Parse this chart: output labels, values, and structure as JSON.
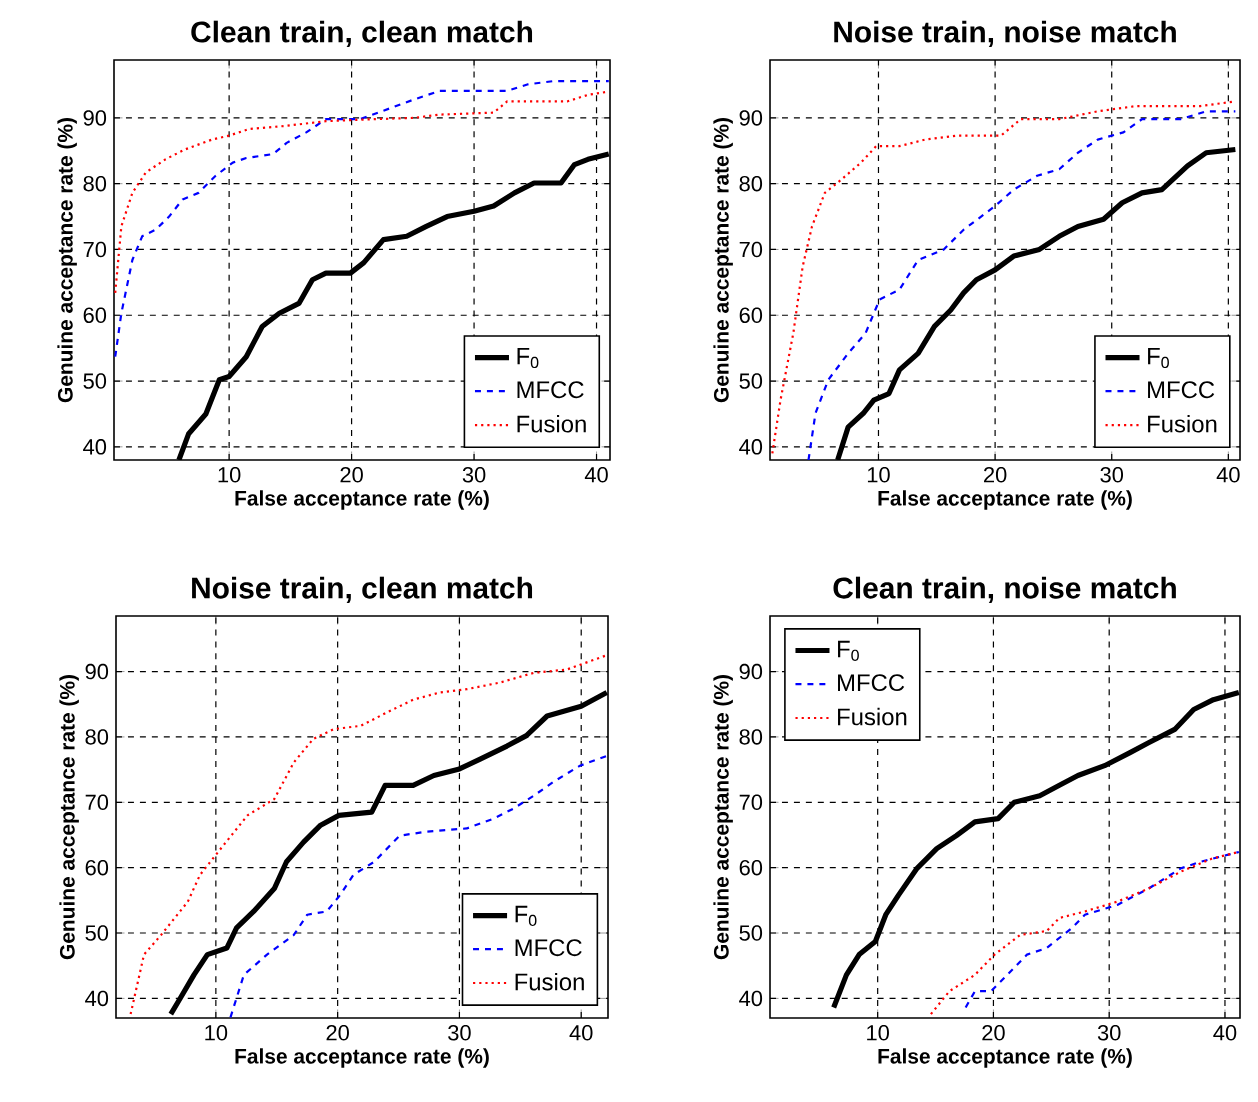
{
  "chart_data": [
    {
      "type": "line",
      "title": "Clean train, clean match",
      "xlabel": "False acceptance rate (%)",
      "ylabel": "Genuine acceptance rate (%)",
      "xlim": [
        0.6,
        41.1
      ],
      "ylim": [
        38,
        98.8
      ],
      "xticks": [
        10,
        20,
        30,
        40
      ],
      "yticks": [
        40,
        50,
        60,
        70,
        80,
        90
      ],
      "grid": true,
      "legend": "bottom right",
      "series": [
        {
          "name": "F$_{0}$",
          "color": "#000000",
          "line_style": "solid",
          "x": [
            5.9,
            6.7,
            8.1,
            9.2,
            10,
            11.4,
            12.7,
            14.1,
            15.7,
            16.8,
            17.9,
            19.9,
            21,
            22.6,
            24.5,
            26.1,
            27.8,
            30,
            31.6,
            33.3,
            34.9,
            37.1,
            38.2,
            39.3,
            41
          ],
          "values": [
            38,
            42,
            45,
            50.2,
            50.7,
            53.7,
            58.3,
            60.3,
            61.8,
            65.4,
            66.4,
            66.4,
            68,
            71.5,
            72,
            73.5,
            75,
            75.8,
            76.6,
            78.6,
            80.1,
            80.1,
            82.9,
            83.7,
            84.5
          ]
        },
        {
          "name": "MFCC",
          "color": "#0000ff",
          "line_style": "dashed",
          "x": [
            0.7,
            1.2,
            2.1,
            2.9,
            4,
            5.1,
            6.2,
            7.5,
            8.9,
            10.3,
            11.4,
            13.6,
            14.7,
            16.3,
            17.9,
            20.7,
            22.9,
            25.1,
            27.2,
            30,
            32.7,
            34.4,
            36.5,
            41
          ],
          "values": [
            53.7,
            60.3,
            68.4,
            72,
            73,
            75,
            77.6,
            78.6,
            81.2,
            83.2,
            83.9,
            84.5,
            86.2,
            87.8,
            89.8,
            89.8,
            91.3,
            92.8,
            94.1,
            94.1,
            94.1,
            95.1,
            95.6,
            95.6
          ]
        },
        {
          "name": "Fusion",
          "color": "#ff0000",
          "line_style": "dotted",
          "x": [
            0.7,
            1.2,
            2.1,
            3.2,
            4.8,
            6.4,
            8.6,
            10,
            11.6,
            14.7,
            17.9,
            21.8,
            25.1,
            27.2,
            31.6,
            32.7,
            37.6,
            39.3,
            41
          ],
          "values": [
            63.4,
            73.5,
            78.6,
            81.7,
            83.7,
            85.2,
            86.7,
            87.3,
            88.3,
            88.8,
            89.5,
            89.8,
            90,
            90.5,
            90.8,
            92.5,
            92.5,
            93.5,
            94
          ]
        }
      ]
    },
    {
      "type": "line",
      "title": "Noise train, noise match",
      "xlabel": "False acceptance rate (%)",
      "ylabel": "Genuine acceptance rate (%)",
      "xlim": [
        0.7,
        41
      ],
      "ylim": [
        38,
        98.8
      ],
      "xticks": [
        10,
        20,
        30,
        40
      ],
      "yticks": [
        40,
        50,
        60,
        70,
        80,
        90
      ],
      "grid": true,
      "legend": "bottom right",
      "series": [
        {
          "name": "F$_{0}$",
          "color": "#000000",
          "line_style": "solid",
          "x": [
            6.5,
            7.4,
            8.7,
            9.6,
            10.9,
            11.8,
            13.4,
            14.8,
            16.2,
            17.3,
            18.4,
            20,
            21.6,
            23.8,
            25.5,
            27.1,
            29.3,
            30.9,
            32.6,
            34.3,
            36.5,
            38.1,
            40.6
          ],
          "values": [
            38,
            43,
            45.1,
            47.1,
            48.1,
            51.7,
            54.2,
            58.3,
            60.8,
            63.4,
            65.4,
            66.9,
            69,
            70,
            72,
            73.5,
            74.6,
            77.1,
            78.6,
            79.1,
            82.7,
            84.7,
            85.2
          ]
        },
        {
          "name": "MFCC",
          "color": "#0000ff",
          "line_style": "dashed",
          "x": [
            4,
            4.6,
            5.7,
            7.4,
            8.9,
            10.1,
            11.8,
            13.4,
            15.6,
            17.3,
            20,
            21.6,
            23.6,
            25.5,
            27.1,
            28.8,
            31,
            32.6,
            35.9,
            38.1,
            40.6
          ],
          "values": [
            38,
            45.1,
            50.2,
            54.2,
            57.3,
            62.4,
            63.9,
            68.4,
            70,
            73,
            76.6,
            79.1,
            81.2,
            82.2,
            84.7,
            86.7,
            87.8,
            89.8,
            89.8,
            91,
            91
          ]
        },
        {
          "name": "Fusion",
          "color": "#ff0000",
          "line_style": "dotted",
          "x": [
            0.9,
            1.6,
            2.7,
            3.5,
            4.3,
            5.4,
            6.8,
            8.5,
            9.8,
            11.8,
            14,
            16.7,
            20.5,
            22.2,
            25.5,
            28.8,
            32.1,
            37.6,
            40.6
          ],
          "values": [
            39,
            47.1,
            57.3,
            67.4,
            73.5,
            78.6,
            80.6,
            83.2,
            85.7,
            85.7,
            86.7,
            87.3,
            87.3,
            89.8,
            89.8,
            91,
            91.8,
            91.8,
            92.5
          ]
        }
      ]
    },
    {
      "type": "line",
      "title": "Noise train, clean match",
      "xlabel": "False acceptance rate (%)",
      "ylabel": "Genuine acceptance rate (%)",
      "xlim": [
        1.8,
        42.2
      ],
      "ylim": [
        37,
        98.5
      ],
      "xticks": [
        10,
        20,
        30,
        40
      ],
      "yticks": [
        40,
        50,
        60,
        70,
        80,
        90
      ],
      "grid": true,
      "legend": "bottom right",
      "series": [
        {
          "name": "F$_{0}$",
          "color": "#000000",
          "line_style": "solid",
          "x": [
            6.3,
            7.1,
            8.2,
            9.3,
            10.9,
            11.7,
            13.1,
            14.8,
            15.8,
            17.2,
            18.6,
            20.1,
            22.8,
            23.9,
            26.2,
            27.9,
            30,
            31.7,
            33.9,
            35.5,
            37.2,
            40,
            42.1
          ],
          "values": [
            37.6,
            40.1,
            43.6,
            46.7,
            47.7,
            50.8,
            53.3,
            56.8,
            60.9,
            63.9,
            66.5,
            68,
            68.5,
            72.6,
            72.6,
            74.1,
            75.1,
            76.6,
            78.6,
            80.2,
            83.2,
            84.7,
            86.8
          ]
        },
        {
          "name": "MFCC",
          "color": "#0000ff",
          "line_style": "dashed",
          "x": [
            11.2,
            12.3,
            14.2,
            16.4,
            17.5,
            19.1,
            20.2,
            21.3,
            23,
            25.1,
            27.3,
            30.6,
            32.8,
            34.4,
            36.1,
            37.7,
            39.9,
            42.1
          ],
          "values": [
            37.1,
            43.6,
            46.7,
            49.7,
            52.8,
            53.3,
            55.8,
            58.9,
            60.9,
            64.9,
            65.5,
            66,
            67.5,
            69,
            71,
            73.1,
            75.6,
            77.1
          ]
        },
        {
          "name": "Fusion",
          "color": "#ff0000",
          "line_style": "dotted",
          "x": [
            3,
            4.1,
            5.5,
            7.7,
            8.7,
            10.4,
            12.6,
            14.8,
            16.4,
            18,
            19.7,
            21.9,
            24,
            26.2,
            28.4,
            30.6,
            33.3,
            36.1,
            38.8,
            42.1
          ],
          "values": [
            37.6,
            46.7,
            49.7,
            54.8,
            58.9,
            62.9,
            68,
            70.5,
            76.1,
            79.7,
            81.2,
            81.7,
            83.7,
            85.7,
            86.8,
            87.3,
            88.3,
            89.8,
            90.3,
            92.5
          ]
        }
      ]
    },
    {
      "type": "line",
      "title": "Clean train, noise match",
      "xlabel": "False acceptance rate (%)",
      "ylabel": "Genuine acceptance rate (%)",
      "xlim": [
        0.7,
        41.3
      ],
      "ylim": [
        37,
        98.5
      ],
      "xticks": [
        10,
        20,
        30,
        40
      ],
      "yticks": [
        40,
        50,
        60,
        70,
        80,
        90
      ],
      "grid": true,
      "legend": "top left",
      "series": [
        {
          "name": "F$_{0}$",
          "color": "#000000",
          "line_style": "solid",
          "x": [
            6.2,
            7.3,
            8.4,
            9.8,
            10.7,
            11.8,
            13.4,
            15.1,
            16.8,
            18.4,
            20.4,
            21.8,
            24,
            25.7,
            27.3,
            29.6,
            31.8,
            33.4,
            35.7,
            37.3,
            39,
            41.2
          ],
          "values": [
            38.6,
            43.6,
            46.7,
            48.7,
            52.8,
            55.8,
            59.9,
            62.9,
            64.9,
            67,
            67.5,
            70,
            71,
            72.6,
            74.1,
            75.6,
            77.6,
            79.1,
            81.2,
            84.2,
            85.7,
            86.8
          ]
        },
        {
          "name": "MFCC",
          "color": "#0000ff",
          "line_style": "dashed",
          "x": [
            17.6,
            18.4,
            19.8,
            21.2,
            22.9,
            24.6,
            26.8,
            27.9,
            30.7,
            33.4,
            36.2,
            37.9,
            41.2
          ],
          "values": [
            38.6,
            41.1,
            41.1,
            43.6,
            46.7,
            47.7,
            50.8,
            52.8,
            54.3,
            56.8,
            59.9,
            60.9,
            62.4
          ]
        },
        {
          "name": "Fusion",
          "color": "#ff0000",
          "line_style": "dotted",
          "x": [
            14.6,
            16.2,
            18.4,
            20.1,
            22.3,
            24.6,
            25.7,
            27.9,
            30.7,
            33.4,
            36.2,
            38.9,
            41.2
          ],
          "values": [
            37.6,
            41.1,
            43.6,
            46.7,
            49.7,
            50.3,
            52.3,
            53.3,
            54.8,
            56.8,
            59.4,
            61.4,
            62.4
          ]
        }
      ]
    }
  ]
}
